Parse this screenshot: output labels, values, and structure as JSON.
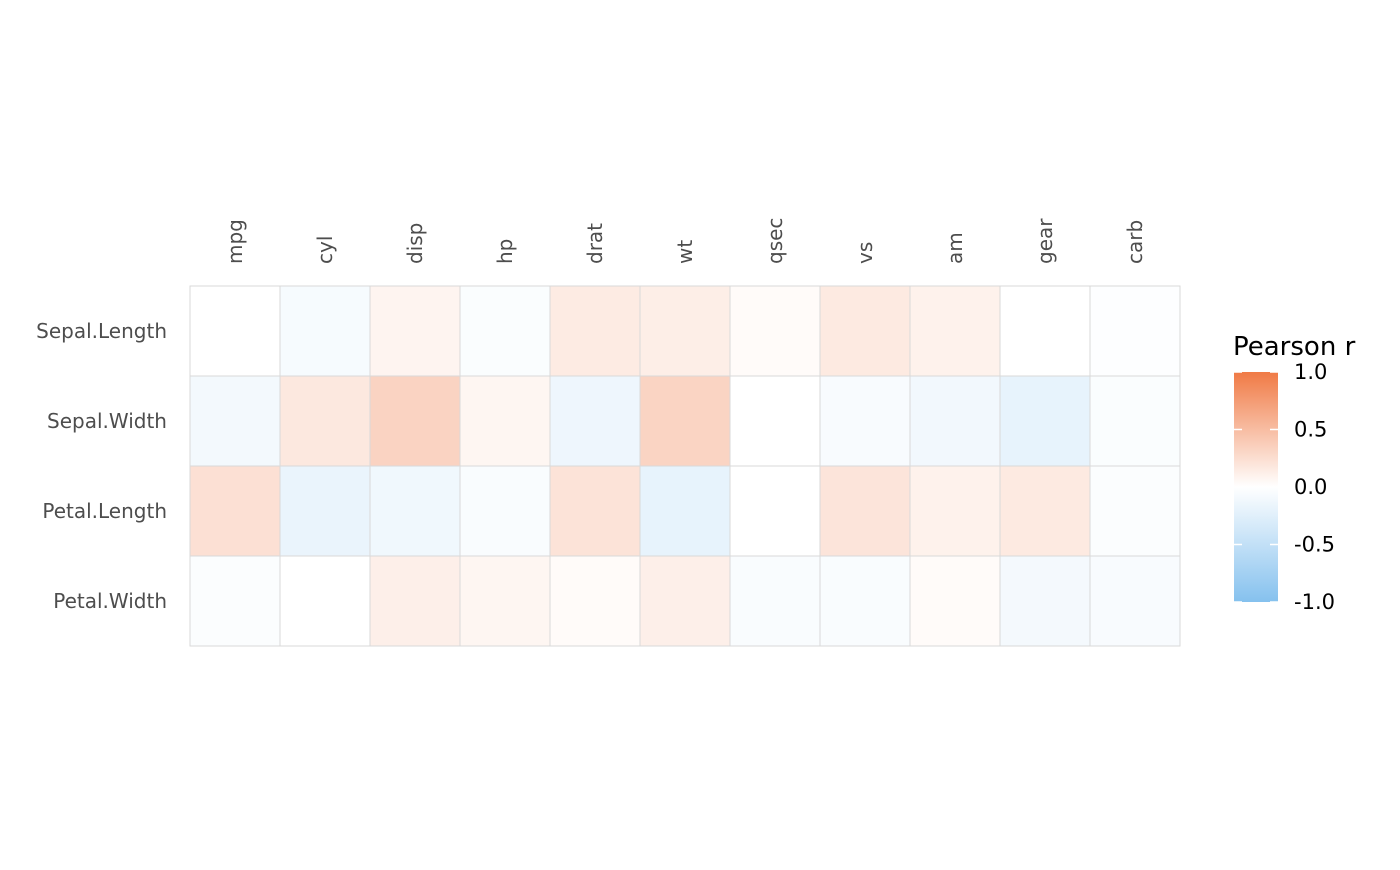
{
  "chart_data": {
    "type": "heatmap",
    "title": "",
    "xlabel": "",
    "ylabel": "",
    "x_categories": [
      "mpg",
      "cyl",
      "disp",
      "hp",
      "drat",
      "wt",
      "qsec",
      "vs",
      "am",
      "gear",
      "carb"
    ],
    "y_categories": [
      "Sepal.Length",
      "Sepal.Width",
      "Petal.Length",
      "Petal.Width"
    ],
    "values": [
      [
        0.0,
        -0.07,
        0.08,
        -0.04,
        0.15,
        0.13,
        0.03,
        0.16,
        0.1,
        0.0,
        -0.02
      ],
      [
        -0.1,
        0.17,
        0.33,
        0.07,
        -0.14,
        0.32,
        0.0,
        -0.06,
        -0.11,
        -0.2,
        -0.04
      ],
      [
        0.23,
        -0.17,
        -0.12,
        -0.05,
        0.21,
        -0.2,
        0.0,
        0.2,
        0.1,
        0.16,
        -0.03
      ],
      [
        -0.03,
        0.0,
        0.12,
        0.07,
        0.03,
        0.12,
        -0.05,
        -0.05,
        0.03,
        -0.09,
        -0.06
      ]
    ],
    "x_axis_position": "top",
    "x_tick_rotation": "vertical",
    "grid": false,
    "color_scale": {
      "low": "#85C1EE",
      "mid": "#FFFFFF",
      "high": "#F07A45",
      "limits": [
        -1,
        1
      ]
    },
    "legend": {
      "title": "Pearson r",
      "position": "right",
      "breaks": [
        "1.0",
        "0.5",
        "0.0",
        "-0.5",
        "-1.0"
      ]
    }
  }
}
